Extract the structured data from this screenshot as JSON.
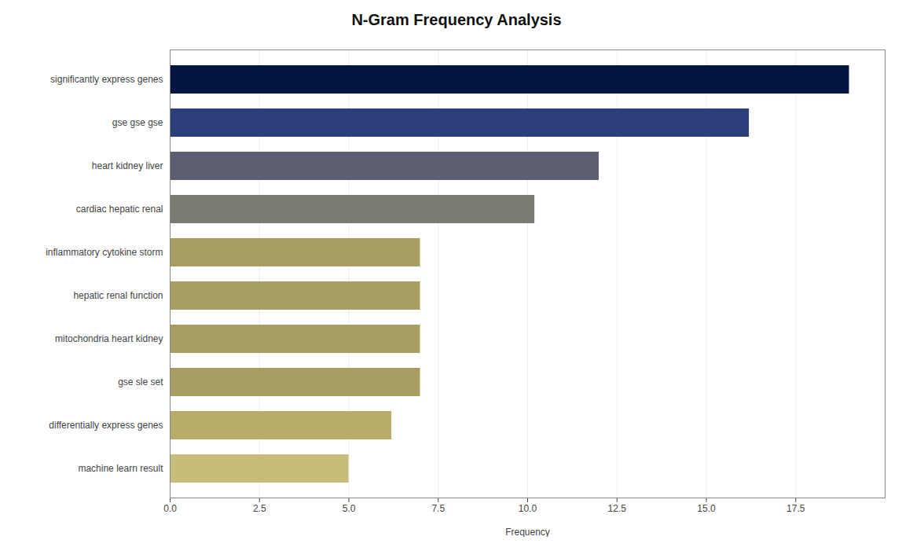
{
  "chart_data": {
    "type": "bar",
    "title": "N-Gram Frequency Analysis",
    "orientation": "horizontal",
    "categories": [
      "machine learn result",
      "differentially express genes",
      "gse sle set",
      "mitochondria heart kidney",
      "hepatic renal function",
      "inflammatory cytokine storm",
      "cardiac hepatic renal",
      "heart kidney liver",
      "gse gse gse",
      "significantly express genes"
    ],
    "values": [
      5,
      6.2,
      7.0,
      7.0,
      7.0,
      7.0,
      10.2,
      12.0,
      16.2,
      19.0
    ],
    "colors": [
      "#c8bc7a",
      "#b8ac6a",
      "#a89e62",
      "#a89e62",
      "#a89e62",
      "#a89e62",
      "#7a7a72",
      "#5c5f72",
      "#2d3f7a",
      "#001540"
    ],
    "xlabel": "Frequency",
    "xlim": [
      0,
      20
    ],
    "xticks": [
      {
        "value": 0,
        "label": "0.0"
      },
      2.5,
      {
        "value": 5,
        "label": "5.0"
      },
      7.5,
      {
        "value": 10,
        "label": "10.0"
      },
      12.5,
      {
        "value": 15,
        "label": "15.0"
      },
      17.5
    ],
    "grid": true
  }
}
